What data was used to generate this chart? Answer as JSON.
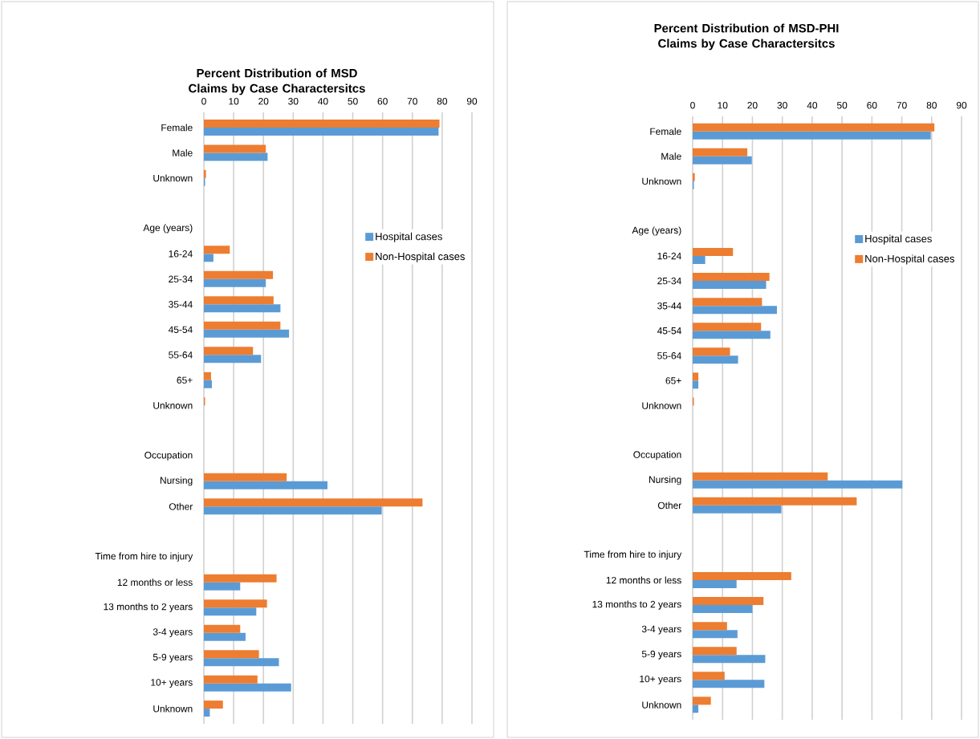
{
  "chart_data": [
    {
      "type": "bar",
      "orientation": "horizontal",
      "title": "Percent Distribution of MSD Claims by Case Charactersitcs",
      "categories": [
        "Female",
        "Male",
        "Unknown",
        null,
        "Age (years)",
        "16-24",
        "25-34",
        "35-44",
        "45-54",
        "55-64",
        "65+",
        "Unknown",
        null,
        "Occupation",
        "Nursing",
        "Other",
        null,
        "Time from hire to injury",
        "12 months or less",
        "13 months to 2 years",
        "3-4 years",
        "5-9 years",
        "10+ years",
        "Unknown"
      ],
      "series": [
        {
          "name": "Hospital cases",
          "color": "#5b9bd5",
          "values": [
            78.8,
            21.4,
            0.4,
            null,
            null,
            3.2,
            20.8,
            25.7,
            28.6,
            19.2,
            2.7,
            null,
            null,
            null,
            41.5,
            59.7,
            null,
            null,
            12.2,
            17.6,
            14.0,
            25.2,
            29.3,
            2.0
          ]
        },
        {
          "name": "Non-Hospital cases",
          "color": "#ed7d31",
          "values": [
            79.1,
            20.8,
            0.7,
            null,
            null,
            8.7,
            23.2,
            23.4,
            25.7,
            16.5,
            2.4,
            0.4,
            null,
            null,
            27.8,
            73.4,
            null,
            null,
            24.4,
            21.2,
            12.2,
            18.5,
            18.0,
            6.4
          ]
        }
      ],
      "xlim": [
        0,
        90
      ],
      "xticks": [
        0,
        10,
        20,
        30,
        40,
        50,
        60,
        70,
        80,
        90
      ],
      "grid": "x",
      "legend": "right"
    },
    {
      "type": "bar",
      "orientation": "horizontal",
      "title": "Percent Distribution of MSD-PHI Claims by Case Charactersitcs",
      "categories": [
        "Female",
        "Male",
        "Unknown",
        null,
        "Age (years)",
        "16-24",
        "25-34",
        "35-44",
        "45-54",
        "55-64",
        "65+",
        "Unknown",
        null,
        "Occupation",
        "Nursing",
        "Other",
        null,
        "Time from hire to injury",
        "12 months or less",
        "13 months to 2 years",
        "3-4 years",
        "5-9 years",
        "10+ years",
        "Unknown"
      ],
      "series": [
        {
          "name": "Hospital cases",
          "color": "#5b9bd5",
          "values": [
            79.7,
            19.8,
            0.4,
            null,
            null,
            4.2,
            24.6,
            28.2,
            26.0,
            15.2,
            1.9,
            null,
            null,
            null,
            70.2,
            29.7,
            null,
            null,
            14.7,
            20.0,
            15.0,
            24.3,
            24.0,
            1.9
          ]
        },
        {
          "name": "Non-Hospital cases",
          "color": "#ed7d31",
          "values": [
            80.9,
            18.3,
            0.7,
            null,
            null,
            13.5,
            25.7,
            23.2,
            22.9,
            12.5,
            1.9,
            0.4,
            null,
            null,
            45.2,
            54.9,
            null,
            null,
            33.0,
            23.7,
            11.5,
            14.7,
            10.7,
            6.1
          ]
        }
      ],
      "xlim": [
        0,
        90
      ],
      "xticks": [
        0,
        10,
        20,
        30,
        40,
        50,
        60,
        70,
        80,
        90
      ],
      "grid": "x",
      "legend": "right"
    }
  ]
}
